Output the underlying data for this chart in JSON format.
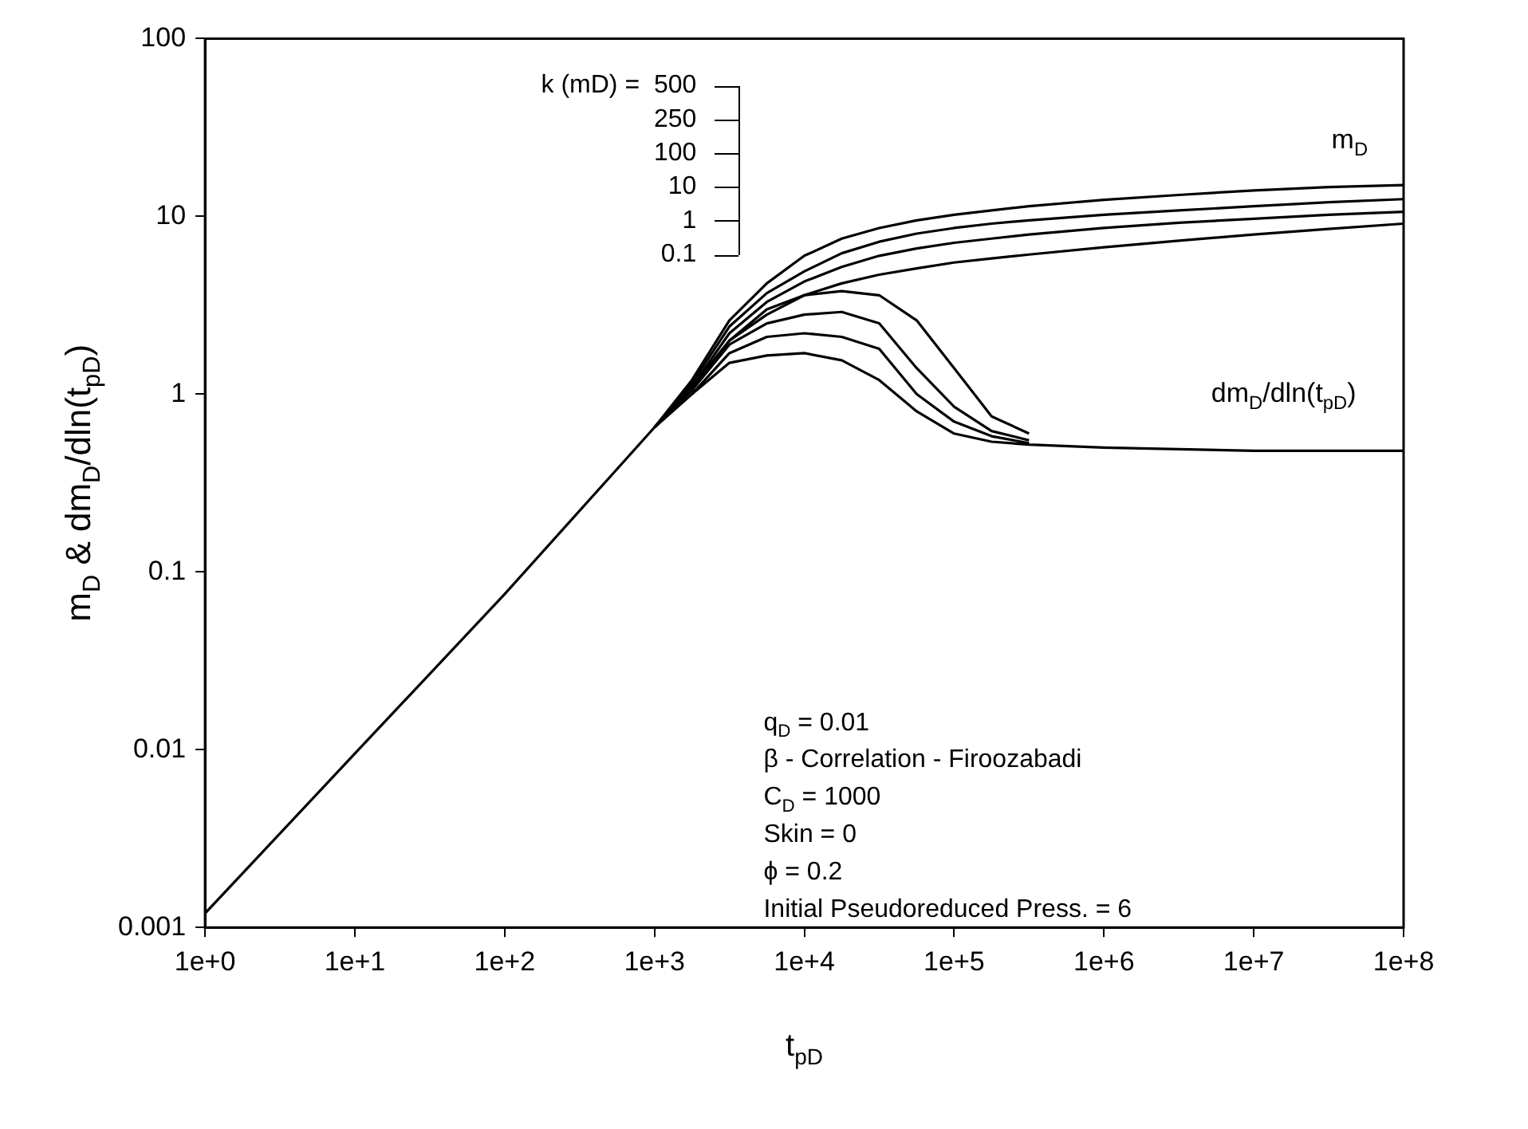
{
  "chart_data": {
    "type": "line",
    "xlabel": "t$_{pD}$",
    "ylabel": "m$_{D}$ & dm$_{D}$/dln(t$_{pD}$)",
    "x": [
      1,
      10,
      100,
      1000,
      1778,
      3162,
      5623,
      10000,
      17783,
      31623,
      56234,
      100000,
      177828,
      316228,
      1000000,
      3162278,
      10000000,
      31622777,
      100000000
    ],
    "series": [
      {
        "color": "#000000",
        "values": [
          0.0012,
          0.0095,
          0.075,
          0.65,
          1.2,
          2.6,
          4.2,
          6.0,
          7.5,
          8.6,
          9.5,
          10.2,
          10.8,
          11.4,
          12.4,
          13.2,
          14,
          14.6,
          15
        ]
      },
      {
        "color": "#000000",
        "values": [
          null,
          null,
          null,
          0.65,
          1.15,
          2.4,
          3.7,
          4.9,
          6.2,
          7.2,
          8.0,
          8.6,
          9.1,
          9.5,
          10.2,
          10.8,
          11.4,
          12,
          12.5
        ]
      },
      {
        "color": "#000000",
        "values": [
          null,
          null,
          null,
          0.65,
          1.1,
          2.2,
          3.3,
          4.3,
          5.2,
          6.0,
          6.6,
          7.1,
          7.5,
          7.9,
          8.6,
          9.2,
          9.7,
          10.2,
          10.6
        ]
      },
      {
        "color": "#000000",
        "values": [
          null,
          null,
          null,
          0.65,
          1.05,
          2.0,
          2.8,
          3.6,
          4.2,
          4.7,
          5.1,
          5.5,
          5.8,
          6.1,
          6.7,
          7.3,
          7.9,
          8.5,
          9.1
        ]
      },
      {
        "color": "#000000",
        "values": [
          null,
          null,
          null,
          null,
          1.1,
          2.0,
          3.0,
          3.6,
          3.8,
          3.6,
          2.6,
          1.4,
          0.75,
          0.6,
          null,
          null,
          null,
          null,
          null
        ]
      },
      {
        "color": "#000000",
        "values": [
          null,
          null,
          null,
          null,
          1.05,
          1.9,
          2.5,
          2.8,
          2.9,
          2.5,
          1.4,
          0.85,
          0.62,
          0.55,
          null,
          null,
          null,
          null,
          null
        ]
      },
      {
        "color": "#000000",
        "values": [
          null,
          null,
          null,
          null,
          1.0,
          1.7,
          2.1,
          2.2,
          2.1,
          1.8,
          1.0,
          0.7,
          0.58,
          0.53,
          null,
          null,
          null,
          null,
          null
        ]
      },
      {
        "color": "#000000",
        "values": [
          null,
          null,
          null,
          0.65,
          1.0,
          1.5,
          1.65,
          1.7,
          1.55,
          1.2,
          0.8,
          0.6,
          0.54,
          0.52,
          0.5,
          0.49,
          0.48,
          0.48,
          0.48
        ]
      }
    ],
    "log": "xy",
    "xlim": [
      1,
      100000000
    ],
    "xticks": [
      {
        "value": 1,
        "label": "1e+0"
      },
      {
        "value": 10,
        "label": "1e+1"
      },
      {
        "value": 100,
        "label": "1e+2"
      },
      {
        "value": 1000,
        "label": "1e+3"
      },
      {
        "value": 10000,
        "label": "1e+4"
      },
      {
        "value": 100000,
        "label": "1e+5"
      },
      {
        "value": 1000000,
        "label": "1e+6"
      },
      {
        "value": 10000000,
        "label": "1e+7"
      },
      {
        "value": 100000000,
        "label": "1e+8"
      }
    ],
    "ylim": [
      0.001,
      100
    ],
    "yticks": [
      0.001,
      0.01,
      0.1,
      1,
      10,
      100
    ],
    "grid": false,
    "legend": false,
    "line_style": "solid",
    "marker": "none",
    "annotations": [
      "k (mD) =  500",
      "250",
      "100",
      "10",
      "1",
      "0.1",
      "q$_{D}$ = 0.01",
      "β - Correlation - Firoozabadi",
      "C$_{D}$ = 1000",
      "Skin = 0",
      "ϕ = 0.2",
      "Initial Pseudoreduced Press. = 6",
      "m$_{D}$",
      "dm$_{D}$/dln(t$_{pD}$)"
    ]
  }
}
